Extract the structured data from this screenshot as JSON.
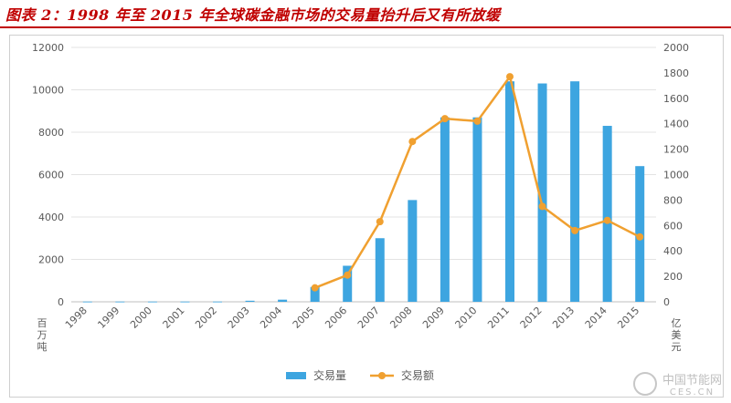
{
  "header": {
    "title": "图表 2：1998 年至 2015 年全球碳金融市场的交易量抬升后又有所放缓"
  },
  "watermark": {
    "name": "中国节能网",
    "domain": "CES.CN"
  },
  "chart_data": {
    "type": "bar+line",
    "categories": [
      "1998",
      "1999",
      "2000",
      "2001",
      "2002",
      "2003",
      "2004",
      "2005",
      "2006",
      "2007",
      "2008",
      "2009",
      "2010",
      "2011",
      "2012",
      "2013",
      "2014",
      "2015"
    ],
    "series": [
      {
        "name": "交易量",
        "type": "bar",
        "axis": "left",
        "values": [
          10,
          10,
          10,
          10,
          10,
          50,
          100,
          700,
          1700,
          3000,
          4800,
          8700,
          8700,
          10400,
          10300,
          10400,
          8300,
          6400
        ]
      },
      {
        "name": "交易额",
        "type": "line",
        "axis": "right",
        "values": [
          null,
          null,
          null,
          null,
          null,
          null,
          null,
          110,
          210,
          630,
          1260,
          1440,
          1420,
          1770,
          750,
          560,
          640,
          510
        ]
      }
    ],
    "y_left": {
      "unit_label": "百万吨",
      "min": 0,
      "max": 12000,
      "ticks": [
        0,
        2000,
        4000,
        6000,
        8000,
        10000,
        12000
      ]
    },
    "y_right": {
      "unit_label": "亿美元",
      "min": 0,
      "max": 2000,
      "ticks": [
        0,
        200,
        400,
        600,
        800,
        1000,
        1200,
        1400,
        1600,
        1800,
        2000
      ]
    },
    "grid": true,
    "legend_position": "bottom",
    "colors": {
      "bar": "#3da5e0",
      "line": "#f0a030",
      "grid": "#e3e3e3",
      "axis_text": "#595959"
    }
  }
}
